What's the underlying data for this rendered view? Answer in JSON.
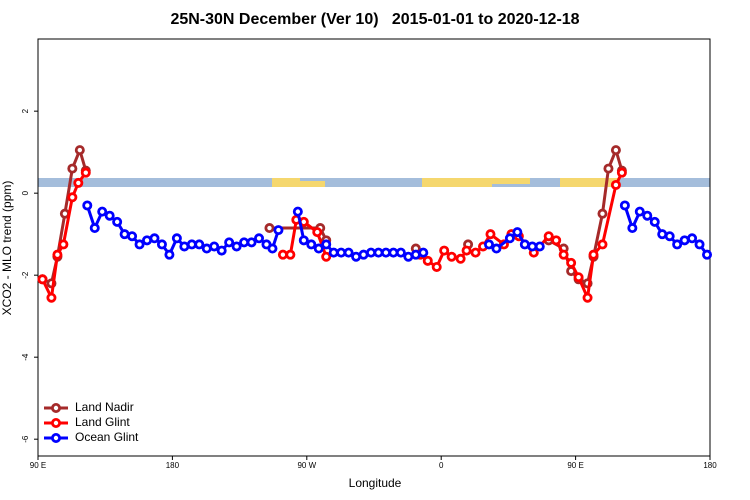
{
  "chart_data": {
    "type": "line",
    "title": "25N-30N December (Ver 10)   2015-01-01 to 2020-12-18",
    "x_label": "Longitude",
    "y_label": "XCO2 - MLO trend (ppm)",
    "xlim": [
      90,
      540
    ],
    "ylim": [
      -6.41,
      3.76
    ],
    "xticks": [
      {
        "value": 90,
        "label": "90 E"
      },
      180,
      {
        "value": 270,
        "label": "90 W"
      },
      {
        "value": 360,
        "label": "0"
      },
      {
        "value": 450,
        "label": "90 E"
      },
      {
        "value": 540,
        "label": "180"
      }
    ],
    "yticks": [
      -6,
      -4,
      -2,
      0,
      2
    ],
    "legend": "bottom-left",
    "series": [
      {
        "name": "Land Nadir",
        "color": "#a52a2a",
        "x": [
          93,
          99,
          103,
          108,
          113,
          118,
          122,
          200,
          245,
          279,
          283,
          320,
          343,
          360,
          378,
          400,
          432,
          442,
          447,
          452,
          458,
          462,
          468,
          472,
          477,
          481
        ],
        "values": [
          -2.1,
          -2.2,
          -1.55,
          -0.5,
          0.6,
          1.05,
          0.55,
          null,
          -0.85,
          -0.85,
          -1.15,
          null,
          -1.35,
          null,
          -1.25,
          null,
          -1.15,
          -1.35,
          -1.9,
          -2.1,
          -2.2,
          -1.55,
          -0.5,
          0.6,
          1.05,
          0.55
        ]
      },
      {
        "name": "Land Glint",
        "color": "#ff0000",
        "x": [
          93,
          99,
          103,
          107,
          113,
          117,
          122,
          200,
          254,
          259,
          263,
          268,
          277,
          283,
          320,
          346,
          351,
          357,
          362,
          367,
          373,
          377,
          383,
          388,
          393,
          402,
          407,
          412,
          422,
          432,
          437,
          442,
          447,
          452,
          458,
          462,
          468,
          477,
          481
        ],
        "values": [
          -2.1,
          -2.55,
          -1.5,
          -1.25,
          -0.1,
          0.25,
          0.5,
          null,
          -1.5,
          -1.5,
          -0.65,
          -0.7,
          -0.95,
          -1.55,
          null,
          -1.5,
          -1.65,
          -1.8,
          -1.4,
          -1.55,
          -1.6,
          -1.4,
          -1.45,
          -1.3,
          -1.0,
          -1.25,
          -1.0,
          -1.05,
          -1.45,
          -1.05,
          -1.15,
          -1.5,
          -1.7,
          -2.05,
          -2.55,
          -1.5,
          -1.25,
          0.2,
          0.5
        ]
      },
      {
        "name": "Ocean Glint",
        "color": "#0000ff",
        "x": [
          123,
          128,
          133,
          138,
          143,
          148,
          153,
          158,
          163,
          168,
          173,
          178,
          183,
          188,
          193,
          198,
          203,
          208,
          213,
          218,
          223,
          228,
          233,
          238,
          243,
          247,
          251,
          256,
          264,
          268,
          273,
          278,
          283,
          288,
          293,
          298,
          303,
          308,
          313,
          318,
          323,
          328,
          333,
          338,
          343,
          348,
          370,
          392,
          397,
          406,
          411,
          416,
          421,
          426,
          460,
          483,
          488,
          493,
          498,
          503,
          508,
          513,
          518,
          523,
          528,
          533,
          538
        ],
        "values": [
          -0.3,
          -0.85,
          -0.45,
          -0.55,
          -0.7,
          -1.0,
          -1.05,
          -1.25,
          -1.15,
          -1.1,
          -1.25,
          -1.5,
          -1.1,
          -1.3,
          -1.25,
          -1.25,
          -1.35,
          -1.3,
          -1.4,
          -1.2,
          -1.3,
          -1.2,
          -1.2,
          -1.1,
          -1.25,
          -1.35,
          -0.9,
          null,
          -0.45,
          -1.15,
          -1.25,
          -1.35,
          -1.25,
          -1.45,
          -1.45,
          -1.45,
          -1.55,
          -1.5,
          -1.45,
          -1.45,
          -1.45,
          -1.45,
          -1.45,
          -1.55,
          -1.5,
          -1.45,
          null,
          -1.25,
          -1.35,
          -1.1,
          -0.95,
          -1.25,
          -1.3,
          -1.3,
          null,
          -0.3,
          -0.85,
          -0.45,
          -0.55,
          -0.7,
          -1.0,
          -1.05,
          -1.25,
          -1.15,
          -1.1,
          -1.25,
          -1.5
        ]
      }
    ]
  }
}
